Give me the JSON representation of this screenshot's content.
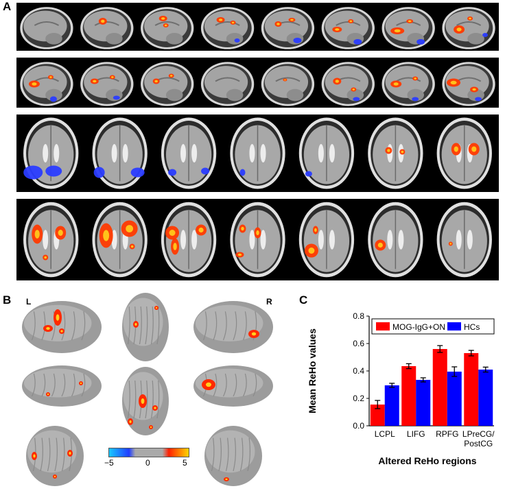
{
  "panels": {
    "a": "A",
    "b": "B",
    "c": "C"
  },
  "brain_views": {
    "left": "L",
    "right": "R"
  },
  "colorbar": {
    "min": "−5",
    "mid": "0",
    "max": "5",
    "colors": [
      "#19c8ff",
      "#1f3cff",
      "#a9a9a9",
      "#ff1e00",
      "#ffd400"
    ]
  },
  "chart_data": {
    "type": "bar",
    "xlabel": "Altered ReHo regions",
    "ylabel": "Mean ReHo values",
    "ylim": [
      0,
      0.8
    ],
    "yticks": [
      "0.0",
      "0.2",
      "0.4",
      "0.6",
      "0.8"
    ],
    "categories": [
      [
        "LCPL"
      ],
      [
        "LIFG"
      ],
      [
        "RPFG"
      ],
      [
        "LPreCG/",
        "PostCG"
      ]
    ],
    "legend_position": "top-left",
    "series": [
      {
        "name": "MOG-IgG+ON",
        "color": "#ff0000",
        "values": [
          0.155,
          0.435,
          0.56,
          0.53
        ],
        "errors": [
          0.03,
          0.018,
          0.025,
          0.02
        ]
      },
      {
        "name": "HCs",
        "color": "#0000ff",
        "values": [
          0.295,
          0.335,
          0.395,
          0.41
        ],
        "errors": [
          0.015,
          0.015,
          0.035,
          0.018
        ]
      }
    ]
  }
}
